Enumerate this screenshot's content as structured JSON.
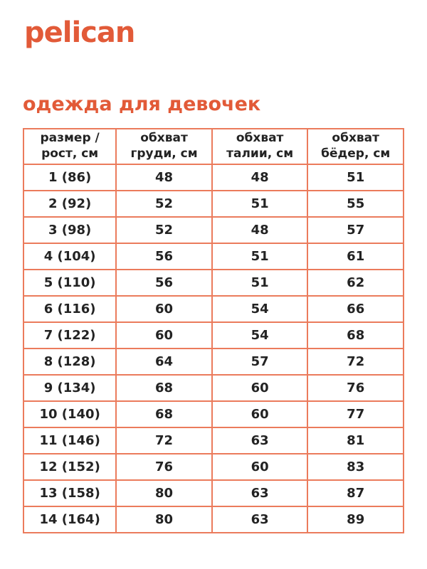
{
  "brand": {
    "logo_text": "pelican"
  },
  "page": {
    "title": "одежда для девочек"
  },
  "colors": {
    "brand_orange": "#e25a38",
    "table_border": "#eb7b5c",
    "text_dark": "#232323",
    "background": "#ffffff"
  },
  "table": {
    "headers": [
      {
        "line1": "размер /",
        "line2": "рост, см"
      },
      {
        "line1": "обхват",
        "line2": "груди, см"
      },
      {
        "line1": "обхват",
        "line2": "талии, см"
      },
      {
        "line1": "обхват",
        "line2": "бёдер, см"
      }
    ],
    "rows": [
      {
        "size": "1 (86)",
        "chest": "48",
        "waist": "48",
        "hips": "51"
      },
      {
        "size": "2 (92)",
        "chest": "52",
        "waist": "51",
        "hips": "55"
      },
      {
        "size": "3 (98)",
        "chest": "52",
        "waist": "48",
        "hips": "57"
      },
      {
        "size": "4 (104)",
        "chest": "56",
        "waist": "51",
        "hips": "61"
      },
      {
        "size": "5 (110)",
        "chest": "56",
        "waist": "51",
        "hips": "62"
      },
      {
        "size": "6 (116)",
        "chest": "60",
        "waist": "54",
        "hips": "66"
      },
      {
        "size": "7 (122)",
        "chest": "60",
        "waist": "54",
        "hips": "68"
      },
      {
        "size": "8 (128)",
        "chest": "64",
        "waist": "57",
        "hips": "72"
      },
      {
        "size": "9 (134)",
        "chest": "68",
        "waist": "60",
        "hips": "76"
      },
      {
        "size": "10 (140)",
        "chest": "68",
        "waist": "60",
        "hips": "77"
      },
      {
        "size": "11 (146)",
        "chest": "72",
        "waist": "63",
        "hips": "81"
      },
      {
        "size": "12 (152)",
        "chest": "76",
        "waist": "60",
        "hips": "83"
      },
      {
        "size": "13 (158)",
        "chest": "80",
        "waist": "63",
        "hips": "87"
      },
      {
        "size": "14 (164)",
        "chest": "80",
        "waist": "63",
        "hips": "89"
      }
    ]
  }
}
